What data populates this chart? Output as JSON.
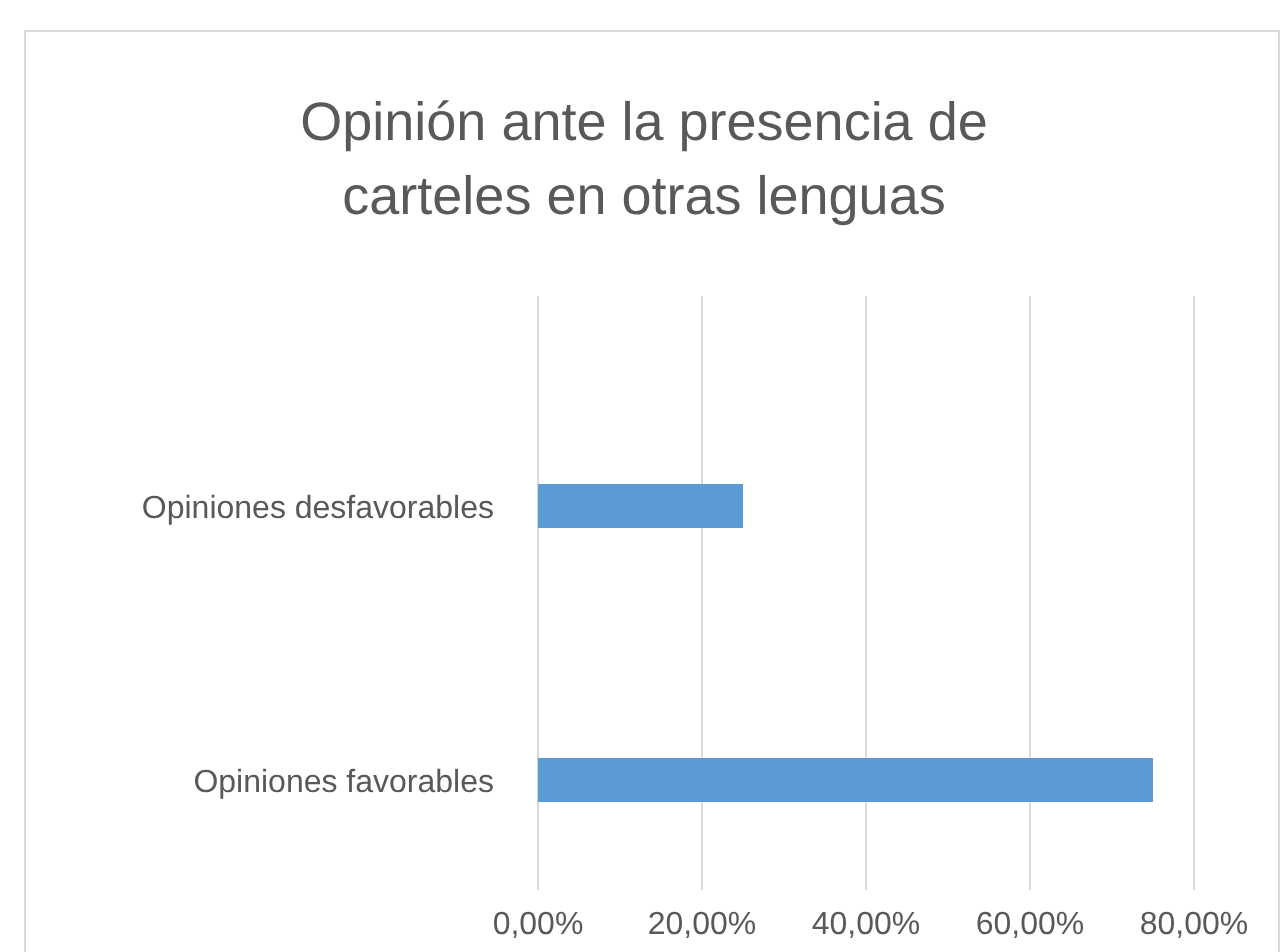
{
  "chart_data": {
    "type": "bar",
    "orientation": "horizontal",
    "title": "Opinión ante la presencia de carteles en otras lenguas",
    "categories": [
      "Opiniones desfavorables",
      "Opiniones favorables"
    ],
    "values": [
      25,
      75
    ],
    "color": "#5b9bd5",
    "xlim": [
      0,
      80
    ],
    "xticks": [
      {
        "value": 0,
        "label": "0,00%"
      },
      {
        "value": 20,
        "label": "20,00%"
      },
      {
        "value": 40,
        "label": "40,00%"
      },
      {
        "value": 60,
        "label": "60,00%"
      },
      {
        "value": 80,
        "label": "80,00%"
      }
    ],
    "grid": "x"
  }
}
